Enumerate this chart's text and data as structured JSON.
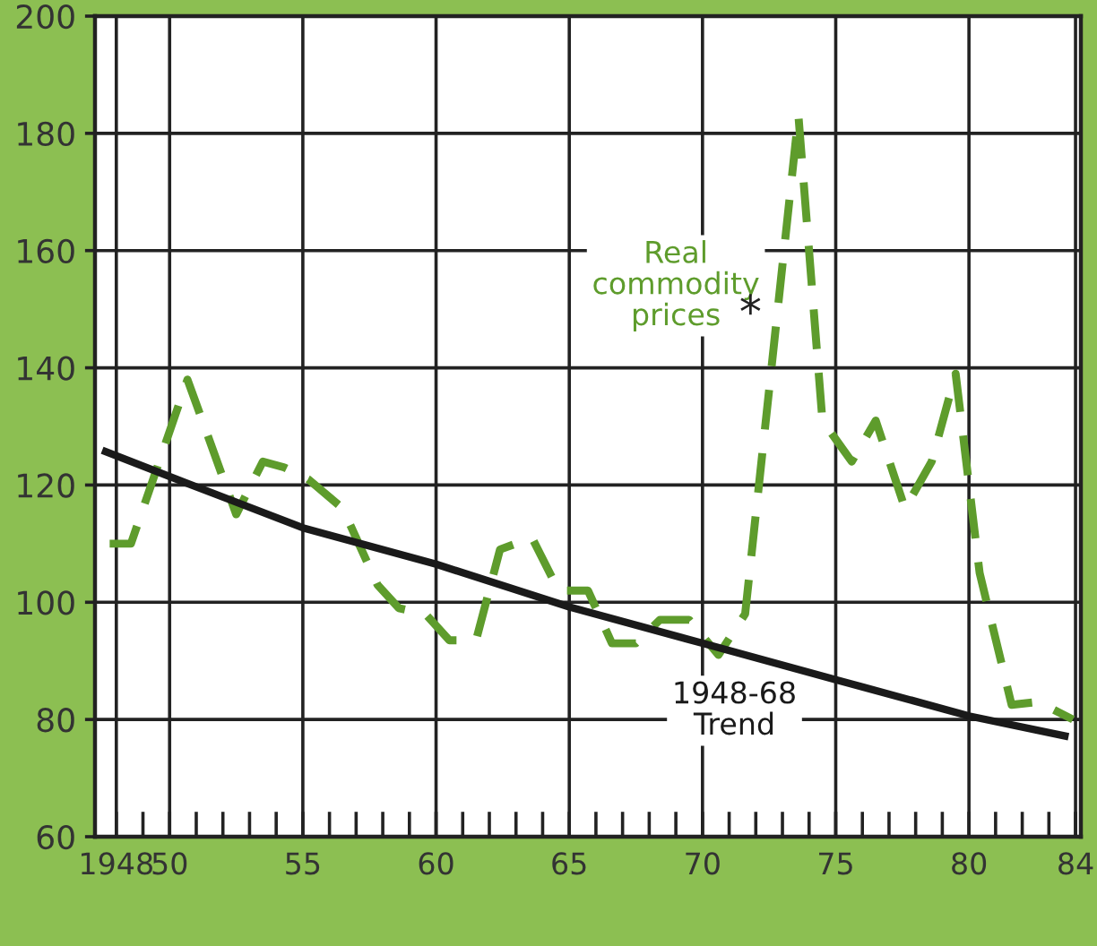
{
  "chart_data": {
    "type": "line",
    "series": [
      {
        "name": "Real commodity prices",
        "color": "#5e9c2c",
        "line_style": "dashed",
        "x": [
          1947.75,
          1948.55,
          1950.67,
          1952.5,
          1953.5,
          1954.3,
          1955.2,
          1956.5,
          1957.8,
          1958.6,
          1959.6,
          1960.5,
          1961.5,
          1962.4,
          1963.6,
          1964.6,
          1965.7,
          1966.6,
          1967.5,
          1968.4,
          1969.5,
          1970.6,
          1971.6,
          1973.6,
          1974.5,
          1975.6,
          1976.5,
          1977.6,
          1978.6,
          1979.5,
          1980.4,
          1981.6,
          1982.6,
          1983.9
        ],
        "values": [
          110,
          110,
          138,
          115,
          124,
          123,
          121,
          116,
          103,
          99,
          98,
          93.5,
          93.5,
          109,
          111,
          102,
          102,
          93,
          93,
          97,
          97,
          91,
          98,
          183,
          131,
          124,
          131,
          116,
          124,
          139,
          105,
          82.5,
          83,
          80
        ]
      },
      {
        "name": "1948-68 Trend",
        "color": "#1a1a1a",
        "line_style": "solid",
        "x": [
          1947.6,
          1950.6,
          1955,
          1960,
          1965,
          1970,
          1975,
          1980,
          1983.6
        ],
        "values": [
          125.7,
          120.4,
          112.7,
          106.5,
          99.2,
          93,
          86.8,
          80.6,
          77.2
        ]
      }
    ],
    "annotations": [
      "*"
    ],
    "xlim": [
      1947.2,
      1984.2
    ],
    "ylim": [
      60,
      200
    ],
    "xticks": [
      {
        "value": 1948,
        "label": "1948"
      },
      {
        "value": 1949,
        "label": null
      },
      {
        "value": 1950,
        "label": "50"
      },
      {
        "value": 1951,
        "label": null
      },
      {
        "value": 1952,
        "label": null
      },
      {
        "value": 1953,
        "label": null
      },
      {
        "value": 1954,
        "label": null
      },
      {
        "value": 1955,
        "label": "55"
      },
      {
        "value": 1956,
        "label": null
      },
      {
        "value": 1957,
        "label": null
      },
      {
        "value": 1958,
        "label": null
      },
      {
        "value": 1959,
        "label": null
      },
      {
        "value": 1960,
        "label": "60"
      },
      {
        "value": 1961,
        "label": null
      },
      {
        "value": 1962,
        "label": null
      },
      {
        "value": 1963,
        "label": null
      },
      {
        "value": 1964,
        "label": null
      },
      {
        "value": 1965,
        "label": "65"
      },
      {
        "value": 1966,
        "label": null
      },
      {
        "value": 1967,
        "label": null
      },
      {
        "value": 1968,
        "label": null
      },
      {
        "value": 1969,
        "label": null
      },
      {
        "value": 1970,
        "label": "70"
      },
      {
        "value": 1971,
        "label": null
      },
      {
        "value": 1972,
        "label": null
      },
      {
        "value": 1973,
        "label": null
      },
      {
        "value": 1974,
        "label": null
      },
      {
        "value": 1975,
        "label": "75"
      },
      {
        "value": 1976,
        "label": null
      },
      {
        "value": 1977,
        "label": null
      },
      {
        "value": 1978,
        "label": null
      },
      {
        "value": 1979,
        "label": null
      },
      {
        "value": 1980,
        "label": "80"
      },
      {
        "value": 1981,
        "label": null
      },
      {
        "value": 1982,
        "label": null
      },
      {
        "value": 1983,
        "label": null
      },
      {
        "value": 1984,
        "label": "84"
      }
    ],
    "yticks": [
      60,
      80,
      100,
      120,
      140,
      160,
      180,
      200
    ],
    "grid": true,
    "legend": false
  }
}
